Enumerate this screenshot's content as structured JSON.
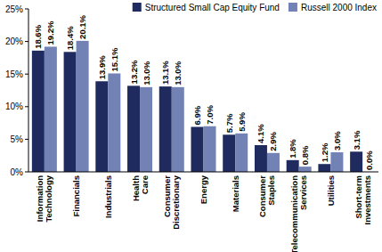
{
  "chart_data": {
    "type": "bar",
    "categories": [
      "Information Technology",
      "Financials",
      "Industrials",
      "Health Care",
      "Consumer Discretionary",
      "Energy",
      "Materials",
      "Consumer Staples",
      "Telecommunication Services",
      "Utilities",
      "Short-term Investments"
    ],
    "series": [
      {
        "name": "Structured Small Cap Equity Fund",
        "color": "#1f2b5e",
        "values": [
          18.6,
          18.4,
          13.9,
          13.2,
          13.1,
          6.9,
          5.7,
          4.1,
          1.8,
          1.2,
          3.1
        ],
        "value_labels": [
          "18.6%",
          "18.4%",
          "13.9%",
          "13.2%",
          "13.1%",
          "6.9%",
          "5.7%",
          "4.1%",
          "1.8%",
          "1.2%",
          "3.1%"
        ]
      },
      {
        "name": "Russell 2000 Index",
        "color": "#7282b4",
        "values": [
          19.2,
          20.1,
          15.1,
          13.0,
          13.0,
          7.0,
          5.9,
          2.9,
          0.8,
          3.0,
          0.0
        ],
        "value_labels": [
          "19.2%",
          "20.1%",
          "15.1%",
          "13.0%",
          "13.0%",
          "7.0%",
          "5.9%",
          "2.9%",
          "0.8%",
          "3.0%",
          "0.0%"
        ]
      }
    ],
    "ylim": [
      0,
      25
    ],
    "yticks": [
      {
        "value": 0,
        "label": "0%"
      },
      {
        "value": 5,
        "label": "5%"
      },
      {
        "value": 10,
        "label": "10%"
      },
      {
        "value": 15,
        "label": "15%"
      },
      {
        "value": 20,
        "label": "20%"
      },
      {
        "value": 25,
        "label": "25%"
      }
    ],
    "grid": false,
    "legend": "top-right",
    "data_labels": true
  }
}
